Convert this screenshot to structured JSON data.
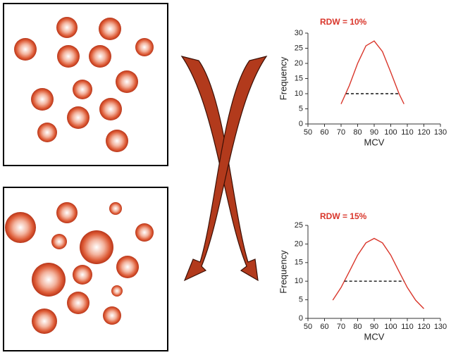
{
  "chart_data": [
    {
      "type": "line",
      "title": "RDW = 10%",
      "xlabel": "MCV",
      "ylabel": "Frequency",
      "color": "#d9362b",
      "x": [
        70,
        75,
        80,
        85,
        90,
        95,
        100,
        105,
        108
      ],
      "values": [
        6.6,
        12.7,
        20.0,
        25.8,
        27.4,
        23.9,
        17.1,
        10.0,
        6.6
      ],
      "hline": {
        "y": 10,
        "xmin": 73,
        "xmax": 105
      },
      "xlim": [
        50,
        130
      ],
      "xticks": [
        50,
        60,
        70,
        80,
        90,
        100,
        110,
        120,
        130
      ],
      "ylim": [
        0,
        30
      ],
      "yticks": [
        0,
        5,
        10,
        15,
        20,
        25,
        30
      ]
    },
    {
      "type": "line",
      "title": "RDW = 15%",
      "xlabel": "MCV",
      "ylabel": "Frequency",
      "color": "#d9362b",
      "x": [
        65,
        70,
        75,
        80,
        85,
        90,
        95,
        100,
        105,
        110,
        115,
        120
      ],
      "values": [
        4.9,
        8.3,
        12.6,
        17.0,
        20.3,
        21.5,
        20.3,
        17.0,
        12.6,
        8.3,
        4.9,
        2.6
      ],
      "hline": {
        "y": 10,
        "xmin": 72,
        "xmax": 108
      },
      "xlim": [
        50,
        130
      ],
      "xticks": [
        50,
        60,
        70,
        80,
        90,
        100,
        110,
        120,
        130
      ],
      "ylim": [
        0,
        25
      ],
      "yticks": [
        0,
        5,
        10,
        15,
        20,
        25
      ]
    }
  ]
}
